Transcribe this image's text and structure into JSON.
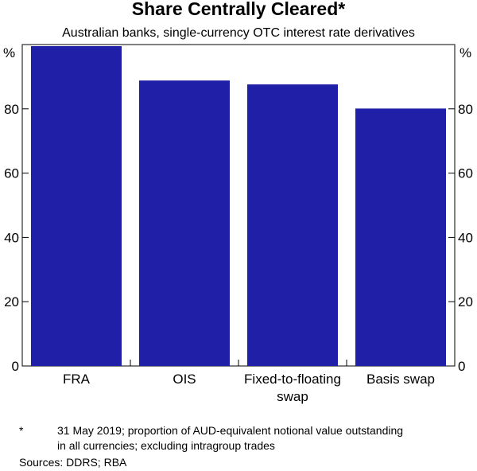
{
  "chart_data": {
    "type": "bar",
    "title": "Share Centrally Cleared*",
    "subtitle": "Australian banks, single-currency OTC interest rate derivatives",
    "categories": [
      [
        "FRA"
      ],
      [
        "OIS"
      ],
      [
        "Fixed-to-floating",
        "swap"
      ],
      [
        "Basis swap"
      ]
    ],
    "values": [
      99.5,
      88.8,
      87.6,
      80.1
    ],
    "unit_label": "%",
    "ylim": [
      0,
      100
    ],
    "yticks": [
      0,
      20,
      40,
      60,
      80
    ],
    "grid": false,
    "bar_color": "#1f1fa8",
    "axes": "left and right, mirrored"
  },
  "footnote": {
    "marker": "*",
    "lines": [
      "31 May 2019; proportion of AUD-equivalent notional value outstanding",
      "in all currencies; excluding intragroup trades"
    ]
  },
  "sources": "Sources: DDRS; RBA"
}
